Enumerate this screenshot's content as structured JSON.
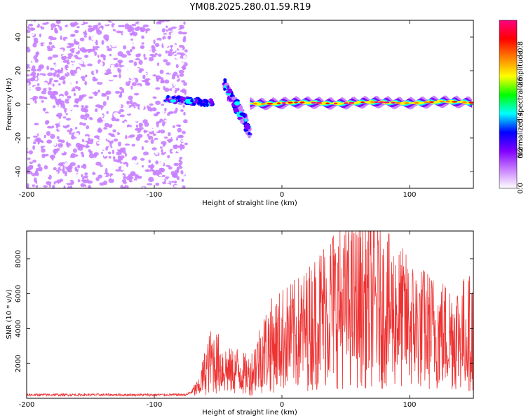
{
  "figure_title": "YM08.2025.280.01.59.R19",
  "chart_data": [
    {
      "type": "heatmap",
      "xlabel": "Height of straight line (km)",
      "ylabel": "Frequency (Hz)",
      "xlim": [
        -200,
        150
      ],
      "ylim": [
        -50,
        50
      ],
      "xticks": [
        -200,
        -100,
        0,
        100
      ],
      "xtick_labels": [
        "-200",
        "-100",
        "0",
        "100"
      ],
      "yticks": [
        -40,
        -20,
        0,
        20,
        40
      ],
      "ytick_labels": [
        "-40",
        "-20",
        "0",
        "20",
        "40"
      ],
      "colorbar": {
        "label": "Normalized spectral amplitude",
        "range": [
          0,
          0.95
        ],
        "ticks": [
          0.0,
          0.2,
          0.4,
          0.6,
          0.8
        ],
        "tick_labels": [
          "0.0",
          "0.2",
          "0.4",
          "0.6",
          "0.8"
        ],
        "colors": [
          "#ffffff",
          "#c880ff",
          "#8000ff",
          "#0000ff",
          "#00ffff",
          "#00ff00",
          "#ffff00",
          "#ff8000",
          "#ff0000",
          "#ff0080"
        ]
      },
      "regions": [
        {
          "name": "noise",
          "x_range": [
            -200,
            -75
          ],
          "y_range": [
            -50,
            50
          ],
          "level": 0.1
        },
        {
          "name": "onset-streak-1",
          "x_range": [
            -90,
            -55
          ],
          "y_range": [
            -5,
            8
          ],
          "level": 0.3
        },
        {
          "name": "onset-streak-2",
          "x_range": [
            -45,
            -25
          ],
          "y_range": [
            -20,
            15
          ],
          "level": 0.35
        },
        {
          "name": "ridge",
          "x_range": [
            -25,
            150
          ],
          "y_range": [
            -1,
            2
          ],
          "level": 0.7
        }
      ]
    },
    {
      "type": "line",
      "xlabel": "Height of straight line (km)",
      "ylabel": "SNR (10 * v/v)",
      "xlim": [
        -200,
        150
      ],
      "ylim": [
        0,
        9600
      ],
      "xticks": [
        -200,
        -100,
        0,
        100
      ],
      "xtick_labels": [
        "-200",
        "-100",
        "0",
        "100"
      ],
      "yticks": [
        2000,
        4000,
        6000,
        8000
      ],
      "ytick_labels": [
        "2000",
        "4000",
        "6000",
        "8000"
      ],
      "color": "#ee3333",
      "series": [
        {
          "name": "SNR",
          "x": [
            -200,
            -75,
            -65,
            -60,
            -55,
            -50,
            -45,
            -40,
            -35,
            -30,
            -25,
            -20,
            -15,
            -10,
            -5,
            0,
            10,
            20,
            30,
            40,
            50,
            60,
            70,
            80,
            90,
            100,
            110,
            120,
            130,
            140,
            150
          ],
          "y": [
            200,
            200,
            600,
            1600,
            2200,
            2000,
            1700,
            1500,
            1600,
            1400,
            1300,
            2000,
            2600,
            3000,
            3100,
            3400,
            3600,
            4000,
            4700,
            5300,
            5200,
            5400,
            5500,
            5100,
            4800,
            4300,
            4000,
            3800,
            3600,
            3700,
            3800
          ]
        }
      ]
    }
  ]
}
